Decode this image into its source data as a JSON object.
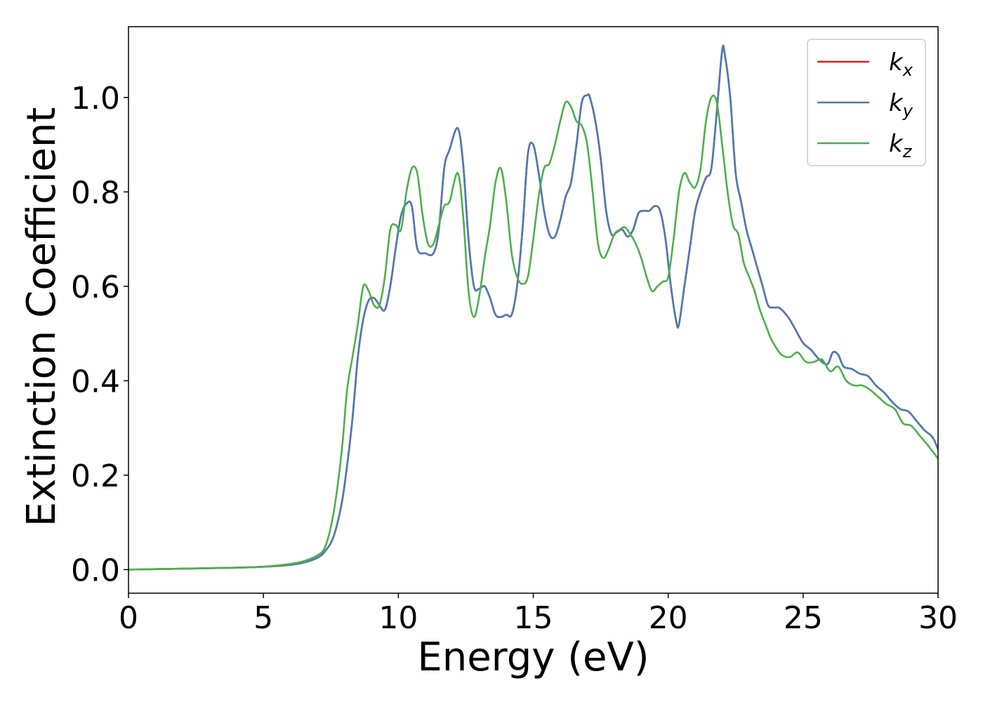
{
  "chart_data": {
    "type": "line",
    "title": "",
    "xlabel": "Energy (eV)",
    "ylabel": "Extinction Coefficient",
    "xlim": [
      0,
      30
    ],
    "ylim": [
      -0.05,
      1.15
    ],
    "xticks": [
      0,
      5,
      10,
      15,
      20,
      25,
      30
    ],
    "xtick_labels": [
      "0",
      "5",
      "10",
      "15",
      "20",
      "25",
      "30"
    ],
    "yticks": [
      0.0,
      0.2,
      0.4,
      0.6,
      0.8,
      1.0
    ],
    "ytick_labels": [
      "0.0",
      "0.2",
      "0.4",
      "0.6",
      "0.8",
      "1.0"
    ],
    "grid": false,
    "legend_position": "top-right",
    "series": [
      {
        "name": "k",
        "subscript": "x",
        "color": "#e41a1c",
        "x": [
          0,
          2,
          4,
          5,
          6,
          6.5,
          7,
          7.3,
          7.6,
          7.9,
          8.1,
          8.3,
          8.5,
          8.7,
          8.9,
          9.1,
          9.3,
          9.5,
          9.7,
          9.9,
          10.1,
          10.3,
          10.5,
          10.7,
          11.0,
          11.3,
          11.5,
          11.7,
          11.9,
          12.2,
          12.4,
          12.6,
          12.8,
          13.0,
          13.2,
          13.4,
          13.6,
          13.8,
          14.0,
          14.2,
          14.4,
          14.6,
          14.8,
          15.0,
          15.2,
          15.4,
          15.6,
          15.8,
          16.0,
          16.2,
          16.4,
          16.6,
          16.8,
          17.0,
          17.1,
          17.3,
          17.5,
          17.7,
          17.9,
          18.1,
          18.3,
          18.5,
          18.7,
          18.9,
          19.1,
          19.3,
          19.5,
          19.7,
          19.9,
          20.1,
          20.3,
          20.4,
          20.6,
          20.8,
          21.0,
          21.2,
          21.4,
          21.6,
          21.8,
          22.0,
          22.1,
          22.3,
          22.5,
          22.7,
          22.9,
          23.1,
          23.3,
          23.5,
          23.7,
          23.9,
          24.1,
          24.3,
          24.5,
          24.7,
          25.0,
          25.3,
          25.6,
          25.9,
          26.1,
          26.3,
          26.5,
          26.8,
          27.1,
          27.4,
          27.7,
          28.0,
          28.3,
          28.6,
          28.9,
          29.2,
          29.5,
          29.8,
          30.0
        ],
        "y": [
          0.0,
          0.002,
          0.004,
          0.006,
          0.01,
          0.015,
          0.025,
          0.04,
          0.07,
          0.14,
          0.22,
          0.32,
          0.45,
          0.53,
          0.57,
          0.575,
          0.56,
          0.55,
          0.6,
          0.68,
          0.75,
          0.775,
          0.77,
          0.68,
          0.67,
          0.67,
          0.72,
          0.85,
          0.89,
          0.935,
          0.86,
          0.7,
          0.6,
          0.595,
          0.6,
          0.575,
          0.54,
          0.535,
          0.54,
          0.54,
          0.6,
          0.72,
          0.88,
          0.9,
          0.84,
          0.76,
          0.71,
          0.705,
          0.74,
          0.79,
          0.82,
          0.9,
          0.99,
          1.005,
          1.0,
          0.95,
          0.87,
          0.76,
          0.71,
          0.715,
          0.72,
          0.705,
          0.72,
          0.755,
          0.76,
          0.76,
          0.77,
          0.76,
          0.7,
          0.6,
          0.525,
          0.52,
          0.6,
          0.68,
          0.76,
          0.8,
          0.83,
          0.85,
          0.97,
          1.1,
          1.09,
          1.0,
          0.84,
          0.78,
          0.72,
          0.68,
          0.64,
          0.6,
          0.56,
          0.555,
          0.555,
          0.545,
          0.53,
          0.51,
          0.48,
          0.465,
          0.445,
          0.435,
          0.46,
          0.455,
          0.43,
          0.425,
          0.415,
          0.41,
          0.39,
          0.375,
          0.355,
          0.34,
          0.335,
          0.315,
          0.295,
          0.28,
          0.255
        ]
      },
      {
        "name": "k",
        "subscript": "y",
        "color": "#4a7bb5",
        "x": [
          0,
          2,
          4,
          5,
          6,
          6.5,
          7,
          7.3,
          7.6,
          7.9,
          8.1,
          8.3,
          8.5,
          8.7,
          8.9,
          9.1,
          9.3,
          9.5,
          9.7,
          9.9,
          10.1,
          10.3,
          10.5,
          10.7,
          11.0,
          11.3,
          11.5,
          11.7,
          11.9,
          12.2,
          12.4,
          12.6,
          12.8,
          13.0,
          13.2,
          13.4,
          13.6,
          13.8,
          14.0,
          14.2,
          14.4,
          14.6,
          14.8,
          15.0,
          15.2,
          15.4,
          15.6,
          15.8,
          16.0,
          16.2,
          16.4,
          16.6,
          16.8,
          17.0,
          17.1,
          17.3,
          17.5,
          17.7,
          17.9,
          18.1,
          18.3,
          18.5,
          18.7,
          18.9,
          19.1,
          19.3,
          19.5,
          19.7,
          19.9,
          20.1,
          20.3,
          20.4,
          20.6,
          20.8,
          21.0,
          21.2,
          21.4,
          21.6,
          21.8,
          22.0,
          22.1,
          22.3,
          22.5,
          22.7,
          22.9,
          23.1,
          23.3,
          23.5,
          23.7,
          23.9,
          24.1,
          24.3,
          24.5,
          24.7,
          25.0,
          25.3,
          25.6,
          25.9,
          26.1,
          26.3,
          26.5,
          26.8,
          27.1,
          27.4,
          27.7,
          28.0,
          28.3,
          28.6,
          28.9,
          29.2,
          29.5,
          29.8,
          30.0
        ],
        "y": [
          0.0,
          0.002,
          0.004,
          0.006,
          0.01,
          0.015,
          0.025,
          0.04,
          0.07,
          0.14,
          0.22,
          0.32,
          0.45,
          0.53,
          0.57,
          0.575,
          0.56,
          0.55,
          0.6,
          0.68,
          0.75,
          0.775,
          0.77,
          0.68,
          0.67,
          0.67,
          0.72,
          0.85,
          0.89,
          0.935,
          0.86,
          0.7,
          0.6,
          0.595,
          0.6,
          0.575,
          0.54,
          0.535,
          0.54,
          0.54,
          0.6,
          0.72,
          0.88,
          0.9,
          0.84,
          0.76,
          0.71,
          0.705,
          0.74,
          0.79,
          0.82,
          0.9,
          0.99,
          1.005,
          1.0,
          0.95,
          0.87,
          0.76,
          0.71,
          0.715,
          0.72,
          0.705,
          0.72,
          0.755,
          0.76,
          0.76,
          0.77,
          0.76,
          0.7,
          0.6,
          0.525,
          0.52,
          0.6,
          0.68,
          0.76,
          0.8,
          0.83,
          0.85,
          0.97,
          1.1,
          1.09,
          1.0,
          0.84,
          0.78,
          0.72,
          0.68,
          0.64,
          0.6,
          0.56,
          0.555,
          0.555,
          0.545,
          0.53,
          0.51,
          0.48,
          0.465,
          0.445,
          0.435,
          0.46,
          0.455,
          0.43,
          0.425,
          0.415,
          0.41,
          0.39,
          0.375,
          0.355,
          0.34,
          0.335,
          0.315,
          0.295,
          0.28,
          0.255
        ]
      },
      {
        "name": "k",
        "subscript": "z",
        "color": "#4daf4a",
        "x": [
          0,
          2,
          4,
          5,
          6,
          6.5,
          7,
          7.3,
          7.6,
          7.9,
          8.1,
          8.3,
          8.5,
          8.7,
          8.9,
          9.1,
          9.3,
          9.5,
          9.7,
          9.9,
          10.1,
          10.3,
          10.5,
          10.7,
          10.9,
          11.1,
          11.3,
          11.5,
          11.7,
          11.9,
          12.2,
          12.4,
          12.6,
          12.8,
          13.0,
          13.2,
          13.4,
          13.6,
          13.8,
          14.0,
          14.2,
          14.4,
          14.6,
          14.8,
          15.0,
          15.2,
          15.4,
          15.6,
          15.8,
          16.0,
          16.2,
          16.4,
          16.6,
          16.8,
          17.0,
          17.2,
          17.4,
          17.6,
          17.8,
          18.0,
          18.2,
          18.4,
          18.6,
          18.8,
          19.0,
          19.2,
          19.4,
          19.6,
          19.8,
          20.0,
          20.2,
          20.4,
          20.6,
          20.8,
          21.0,
          21.2,
          21.4,
          21.6,
          21.8,
          22.0,
          22.2,
          22.4,
          22.6,
          22.8,
          23.0,
          23.2,
          23.4,
          23.6,
          23.8,
          24.0,
          24.2,
          24.5,
          24.8,
          25.1,
          25.4,
          25.7,
          26.0,
          26.3,
          26.6,
          26.9,
          27.2,
          27.5,
          27.8,
          28.1,
          28.4,
          28.7,
          29.0,
          29.3,
          29.6,
          30.0
        ],
        "y": [
          0.0,
          0.002,
          0.004,
          0.006,
          0.012,
          0.018,
          0.03,
          0.05,
          0.12,
          0.25,
          0.38,
          0.45,
          0.52,
          0.6,
          0.59,
          0.56,
          0.56,
          0.62,
          0.72,
          0.73,
          0.72,
          0.8,
          0.85,
          0.84,
          0.75,
          0.69,
          0.69,
          0.73,
          0.77,
          0.78,
          0.84,
          0.75,
          0.59,
          0.535,
          0.58,
          0.66,
          0.73,
          0.82,
          0.85,
          0.78,
          0.67,
          0.62,
          0.605,
          0.62,
          0.7,
          0.79,
          0.85,
          0.86,
          0.9,
          0.95,
          0.99,
          0.98,
          0.95,
          0.94,
          0.9,
          0.8,
          0.69,
          0.66,
          0.68,
          0.71,
          0.72,
          0.725,
          0.71,
          0.69,
          0.66,
          0.62,
          0.59,
          0.6,
          0.61,
          0.62,
          0.7,
          0.8,
          0.84,
          0.82,
          0.81,
          0.85,
          0.95,
          1.0,
          0.99,
          0.9,
          0.8,
          0.73,
          0.71,
          0.65,
          0.62,
          0.59,
          0.55,
          0.52,
          0.49,
          0.47,
          0.455,
          0.45,
          0.46,
          0.44,
          0.44,
          0.445,
          0.42,
          0.43,
          0.4,
          0.39,
          0.39,
          0.38,
          0.365,
          0.35,
          0.34,
          0.31,
          0.305,
          0.285,
          0.265,
          0.235
        ]
      }
    ]
  }
}
